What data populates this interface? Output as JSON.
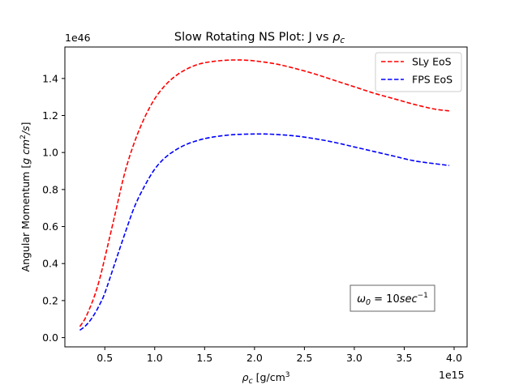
{
  "chart_data": {
    "type": "line",
    "title_prefix": "Slow Rotating NS Plot: J vs ",
    "title_symbol": "ρ",
    "title_sub": "c",
    "xlabel_symbol": "ρ",
    "xlabel_sub": "c",
    "xlabel_unit": "[g/cm",
    "xlabel_unit_sup": "3",
    "xlabel_unit_close": "]",
    "ylabel_main": "Angular Momentum [",
    "ylabel_unit_a": "g cm",
    "ylabel_unit_sup": "2",
    "ylabel_unit_b": "/s",
    "ylabel_close": "]",
    "x_offset_text": "1e15",
    "y_offset_text": "1e46",
    "xlim": [
      0.1,
      4.13
    ],
    "ylim": [
      -0.05,
      1.57
    ],
    "xticks": [
      0.5,
      1.0,
      1.5,
      2.0,
      2.5,
      3.0,
      3.5,
      4.0
    ],
    "xtick_labels": [
      "0.5",
      "1.0",
      "1.5",
      "2.0",
      "2.5",
      "3.0",
      "3.5",
      "4.0"
    ],
    "yticks": [
      0.0,
      0.2,
      0.4,
      0.6,
      0.8,
      1.0,
      1.2,
      1.4
    ],
    "ytick_labels": [
      "0.0",
      "0.2",
      "0.4",
      "0.6",
      "0.8",
      "1.0",
      "1.2",
      "1.4"
    ],
    "legend_position": "upper-right",
    "grid": false,
    "annotation": {
      "omega_symbol": "ω",
      "omega_sub": "0",
      "equals": " = 10",
      "unit": "sec",
      "unit_sup": "−1"
    },
    "series": [
      {
        "name": "SLy EoS",
        "color": "#ff0000",
        "style": "dashed",
        "x": [
          0.25,
          0.3,
          0.35,
          0.4,
          0.45,
          0.5,
          0.6,
          0.7,
          0.8,
          0.9,
          1.0,
          1.1,
          1.2,
          1.3,
          1.4,
          1.5,
          1.6,
          1.7,
          1.8,
          1.9,
          2.0,
          2.2,
          2.4,
          2.6,
          2.8,
          3.0,
          3.2,
          3.4,
          3.6,
          3.8,
          3.95
        ],
        "y": [
          0.06,
          0.1,
          0.16,
          0.23,
          0.32,
          0.43,
          0.66,
          0.89,
          1.06,
          1.19,
          1.29,
          1.36,
          1.41,
          1.445,
          1.47,
          1.485,
          1.493,
          1.498,
          1.5,
          1.499,
          1.495,
          1.48,
          1.455,
          1.425,
          1.39,
          1.355,
          1.32,
          1.29,
          1.26,
          1.235,
          1.225
        ]
      },
      {
        "name": "FPS EoS",
        "color": "#0000ff",
        "style": "dashed",
        "x": [
          0.25,
          0.3,
          0.35,
          0.4,
          0.45,
          0.5,
          0.6,
          0.7,
          0.8,
          0.9,
          1.0,
          1.1,
          1.2,
          1.3,
          1.4,
          1.5,
          1.6,
          1.7,
          1.8,
          1.9,
          2.0,
          2.1,
          2.2,
          2.4,
          2.6,
          2.8,
          3.0,
          3.2,
          3.4,
          3.6,
          3.8,
          3.95
        ],
        "y": [
          0.04,
          0.06,
          0.09,
          0.13,
          0.18,
          0.24,
          0.4,
          0.56,
          0.71,
          0.82,
          0.91,
          0.97,
          1.01,
          1.04,
          1.06,
          1.075,
          1.085,
          1.092,
          1.097,
          1.099,
          1.1,
          1.1,
          1.098,
          1.09,
          1.075,
          1.055,
          1.03,
          1.005,
          0.98,
          0.955,
          0.94,
          0.93
        ]
      }
    ]
  }
}
